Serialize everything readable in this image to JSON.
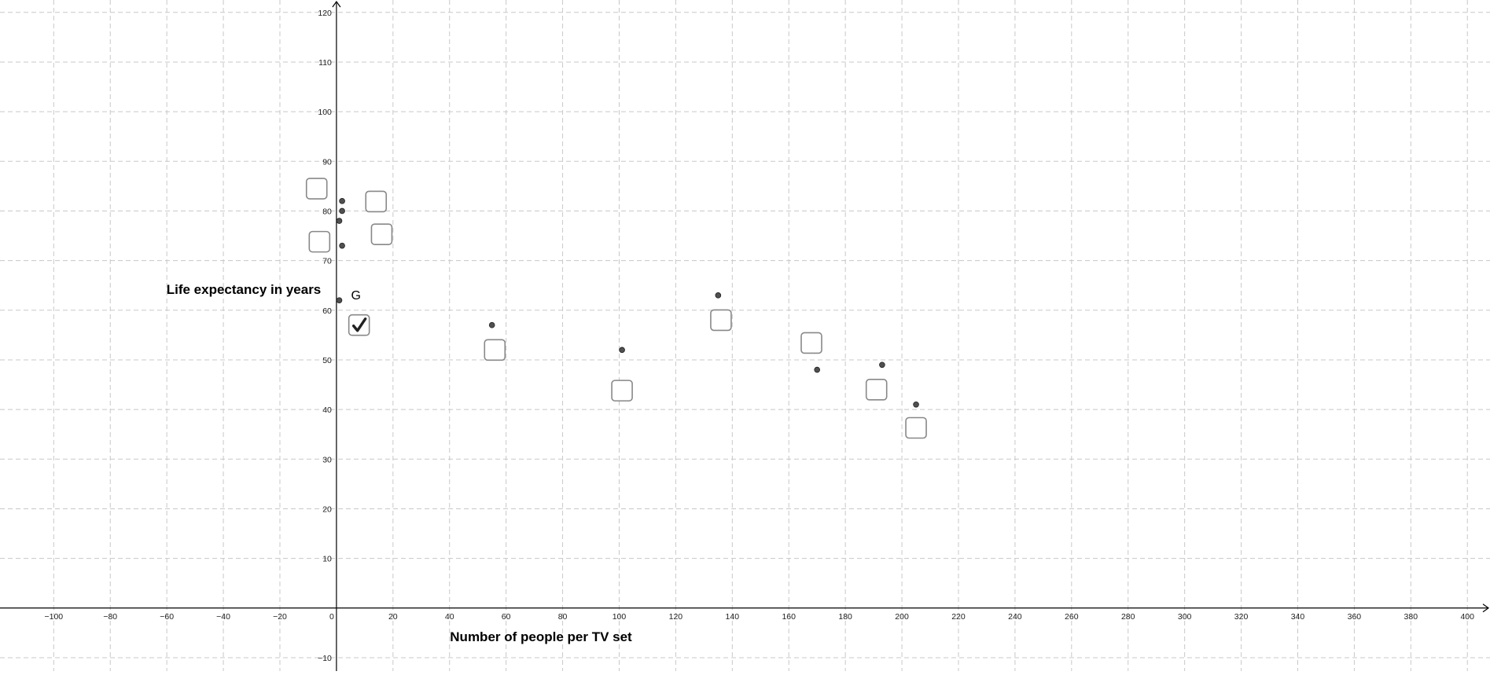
{
  "chart_data": {
    "type": "scatter",
    "xlabel": "Number of people per TV set",
    "ylabel": "Life expectancy in years",
    "xlim": [
      -119,
      408
    ],
    "ylim": [
      -12.7,
      122.5
    ],
    "grid": true,
    "x_ticks": [
      -100,
      -80,
      -60,
      -40,
      -20,
      0,
      20,
      40,
      60,
      80,
      100,
      120,
      140,
      160,
      180,
      200,
      220,
      240,
      260,
      280,
      300,
      320,
      340,
      360,
      380,
      400
    ],
    "x_tick_labels": [
      "−100",
      "−80",
      "−60",
      "−40",
      "−20",
      "0",
      "20",
      "40",
      "60",
      "80",
      "100",
      "120",
      "140",
      "160",
      "180",
      "200",
      "220",
      "240",
      "260",
      "280",
      "300",
      "320",
      "340",
      "360",
      "380",
      "400"
    ],
    "y_ticks": [
      -10,
      10,
      20,
      30,
      40,
      50,
      60,
      70,
      80,
      90,
      100,
      110,
      120
    ],
    "y_tick_labels": [
      "−10",
      "10",
      "20",
      "30",
      "40",
      "50",
      "60",
      "70",
      "80",
      "90",
      "100",
      "110",
      "120"
    ],
    "series": [
      {
        "points": [
          {
            "x": 2,
            "y": 82
          },
          {
            "x": 2,
            "y": 80
          },
          {
            "x": 1,
            "y": 78
          },
          {
            "x": 2,
            "y": 73
          },
          {
            "x": 1,
            "y": 62,
            "label": "G"
          },
          {
            "x": 55,
            "y": 57
          },
          {
            "x": 101,
            "y": 52
          },
          {
            "x": 135,
            "y": 63
          },
          {
            "x": 170,
            "y": 48
          },
          {
            "x": 193,
            "y": 49
          },
          {
            "x": 205,
            "y": 41
          }
        ]
      }
    ],
    "checkboxes": [
      {
        "x": -7,
        "y": 84.5,
        "checked": false
      },
      {
        "x": -6,
        "y": 73.8,
        "checked": false
      },
      {
        "x": 14,
        "y": 81.9,
        "checked": false
      },
      {
        "x": 16,
        "y": 75.3,
        "checked": false
      },
      {
        "x": 8,
        "y": 57,
        "checked": true
      },
      {
        "x": 56,
        "y": 52,
        "checked": false
      },
      {
        "x": 101,
        "y": 43.8,
        "checked": false
      },
      {
        "x": 136,
        "y": 58,
        "checked": false
      },
      {
        "x": 168,
        "y": 53.4,
        "checked": false
      },
      {
        "x": 191,
        "y": 44,
        "checked": false
      },
      {
        "x": 205,
        "y": 36.3,
        "checked": false
      }
    ]
  }
}
